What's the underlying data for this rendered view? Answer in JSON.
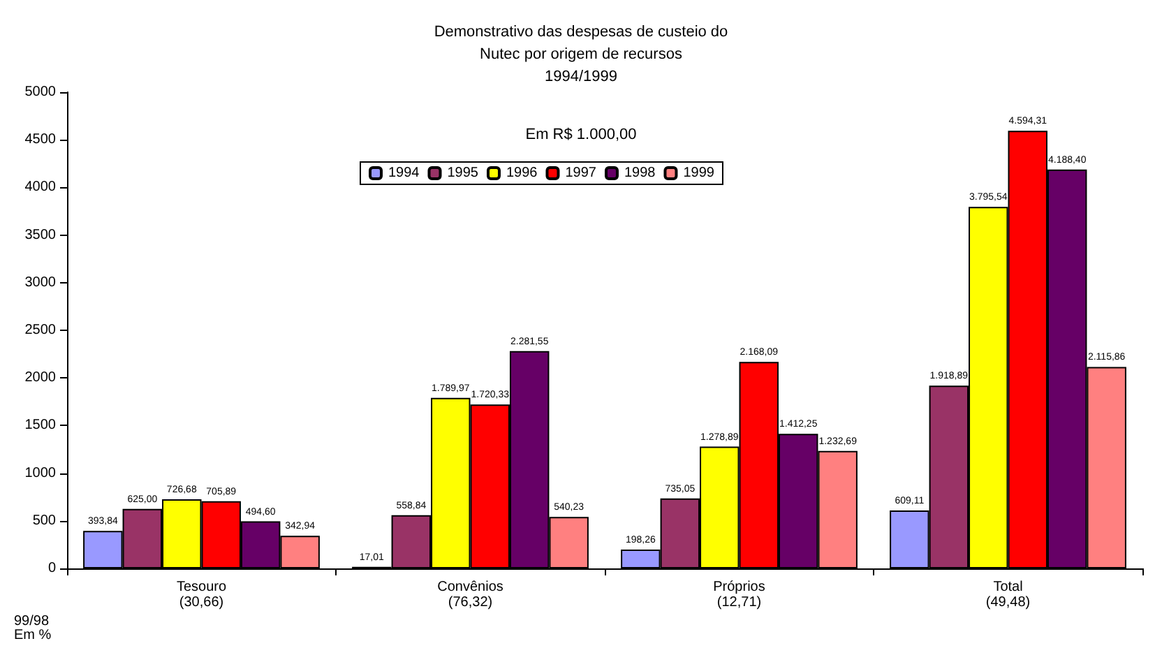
{
  "chart_data": {
    "type": "bar",
    "title": "Demonstrativo das despesas de custeio do\nNutec por origem de recursos\n1994/1999",
    "subtitle": "Em R$ 1.000,00",
    "categories": [
      "Tesouro\n(30,66)",
      "Convênios\n(76,32)",
      "Próprios\n(12,71)",
      "Total\n(49,48)"
    ],
    "series": [
      {
        "name": "1994",
        "color": "#9999ff",
        "values": [
          393.84,
          17.01,
          198.26,
          609.11
        ],
        "value_labels": [
          "393,84",
          "17,01",
          "198,26",
          "609,11"
        ]
      },
      {
        "name": "1995",
        "color": "#993366",
        "values": [
          625.0,
          558.84,
          735.05,
          1918.89
        ],
        "value_labels": [
          "625,00",
          "558,84",
          "735,05",
          "1.918,89"
        ]
      },
      {
        "name": "1996",
        "color": "#ffff00",
        "values": [
          726.68,
          1789.97,
          1278.89,
          3795.54
        ],
        "value_labels": [
          "726,68",
          "1.789,97",
          "1.278,89",
          "3.795,54"
        ]
      },
      {
        "name": "1997",
        "color": "#ff0000",
        "values": [
          705.89,
          1720.33,
          2168.09,
          4594.31
        ],
        "value_labels": [
          "705,89",
          "1.720,33",
          "2.168,09",
          "4.594,31"
        ]
      },
      {
        "name": "1998",
        "color": "#660066",
        "values": [
          494.6,
          2281.55,
          1412.25,
          4188.4
        ],
        "value_labels": [
          "494,60",
          "2.281,55",
          "1.412,25",
          "4.188,40"
        ]
      },
      {
        "name": "1999",
        "color": "#ff8080",
        "values": [
          342.94,
          540.23,
          1232.69,
          2115.86
        ],
        "value_labels": [
          "342,94",
          "540,23",
          "1.232,69",
          "2.115,86"
        ]
      }
    ],
    "ylim": [
      0,
      5000
    ],
    "yticks": [
      0,
      500,
      1000,
      1500,
      2000,
      2500,
      3000,
      3500,
      4000,
      4500,
      5000
    ],
    "grid": false,
    "legend": "top",
    "annotations": [
      "99/98\nEm %"
    ]
  }
}
